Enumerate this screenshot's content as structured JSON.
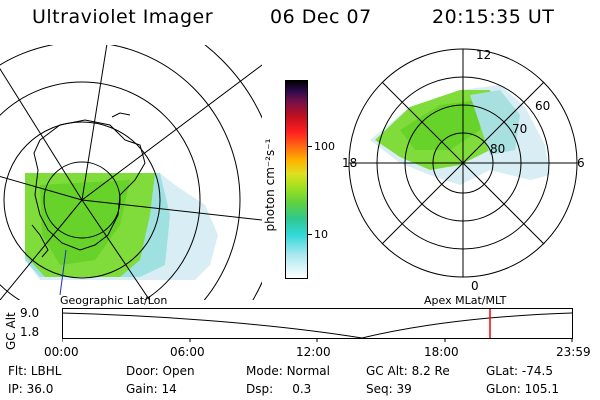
{
  "header": {
    "instrument": "Ultraviolet Imager",
    "date": "06 Dec 07",
    "time": "20:15:35 UT"
  },
  "left_map": {
    "caption": "Geographic Lat/Lon"
  },
  "right_map": {
    "caption": "Apex  MLat/MLT",
    "mlt_labels": [
      "12",
      "18",
      "6",
      "0"
    ],
    "mlat_labels": [
      "60",
      "70",
      "80"
    ]
  },
  "colorbar": {
    "unit_label": "photon cm⁻²s⁻¹",
    "ticks": [
      "100",
      "10"
    ]
  },
  "altitude_plot": {
    "ylabel": "GC Alt",
    "y_ticks": [
      "9.0",
      "1.8"
    ],
    "x_ticks": [
      "00:00",
      "06:00",
      "12:00",
      "18:00",
      "23:59"
    ],
    "marker_color": "#ff0000"
  },
  "status": {
    "row1": [
      {
        "label": "Flt:",
        "value": "LBHL"
      },
      {
        "label": "Door:",
        "value": "Open"
      },
      {
        "label": "Mode:",
        "value": "Normal"
      },
      {
        "label": "GC Alt:",
        "value": "8.2 Re"
      },
      {
        "label": "GLat:",
        "value": "-74.5"
      }
    ],
    "row2": [
      {
        "label": "IP:",
        "value": "36.0"
      },
      {
        "label": "Gain:",
        "value": "14"
      },
      {
        "label": "Dsp:",
        "value": "0.3"
      },
      {
        "label": "Seq:",
        "value": "39"
      },
      {
        "label": "GLon:",
        "value": "105.1"
      }
    ]
  }
}
